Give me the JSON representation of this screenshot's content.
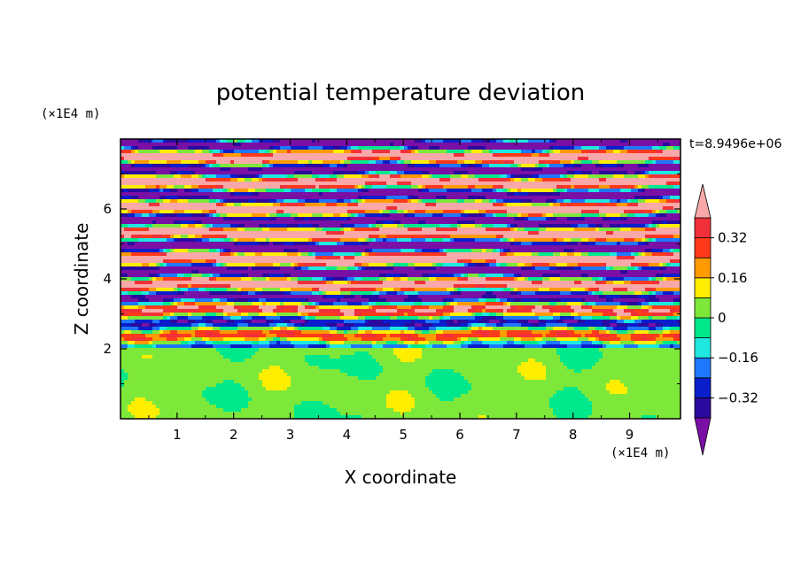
{
  "chart_data": {
    "type": "heatmap",
    "title": "potential temperature deviation",
    "xlabel": "X coordinate",
    "ylabel": "Z coordinate",
    "x_unit": "(×1E4 m)",
    "y_unit": "(×1E4 m)",
    "time_label": "t=8.9496e+06",
    "xlim": [
      0,
      9.9
    ],
    "ylim": [
      0,
      8
    ],
    "x_ticks": [
      "1",
      "2",
      "3",
      "4",
      "5",
      "6",
      "7",
      "8",
      "9"
    ],
    "y_ticks": [
      "2",
      "4",
      "6"
    ],
    "colorbar": {
      "levels": [
        -0.4,
        -0.32,
        -0.24,
        -0.16,
        -0.08,
        0,
        0.08,
        0.16,
        0.24,
        0.32,
        0.4
      ],
      "tick_labels": [
        "0.32",
        "0.16",
        "0",
        "−0.16",
        "−0.32"
      ],
      "colors": [
        "#7a0fa6",
        "#2a0a9e",
        "#0b1ecc",
        "#1e78ff",
        "#1ee8e0",
        "#00e88c",
        "#7ee83a",
        "#ffee00",
        "#ff9a00",
        "#ff3a1a",
        "#f0303a",
        "#f8a8a8"
      ],
      "extend": "both"
    }
  }
}
